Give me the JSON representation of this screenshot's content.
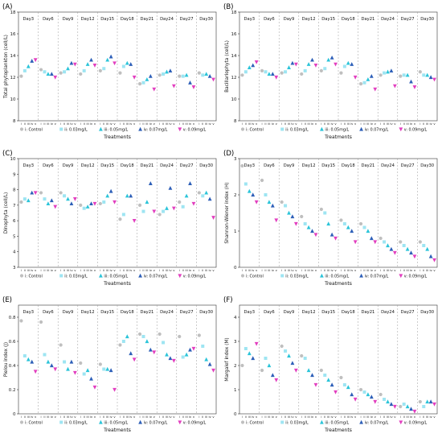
{
  "panels": [
    {
      "letter": "(A)"
    },
    {
      "letter": "(B)"
    },
    {
      "letter": "(C)"
    },
    {
      "letter": "(D)"
    },
    {
      "letter": "(E)"
    },
    {
      "letter": "(F)"
    }
  ],
  "legend": [
    {
      "name": "i: Control",
      "color": "#bfbfbf",
      "marker": "circle"
    },
    {
      "name": "ii: 0.03mg/L",
      "color": "#9ee5f2",
      "marker": "square"
    },
    {
      "name": "iii: 0.05mg/L",
      "color": "#2bc4d9",
      "marker": "triangle"
    },
    {
      "name": "iv: 0.07mg/L",
      "color": "#2d5fb8",
      "marker": "triangle"
    },
    {
      "name": "v: 0.09mg/L",
      "color": "#e23fbf",
      "marker": "triangle-down"
    }
  ],
  "chart_data": [
    {
      "type": "scatter",
      "title": "(A)",
      "xlabel": "Treatments",
      "ylabel": "Total phytoplankton (cell/L)",
      "ylim": [
        8,
        18
      ],
      "yticks": [
        8,
        10,
        12,
        14,
        16,
        18
      ],
      "days": [
        "Day3",
        "Day6",
        "Day9",
        "Day12",
        "Day15",
        "Day18",
        "Day21",
        "Day24",
        "Day27",
        "Day30"
      ],
      "treatment_ticks": [
        "i",
        "ii",
        "iii",
        "iv",
        "v"
      ],
      "grid": false,
      "legend_position": "bottom",
      "series": [
        {
          "name": "i: Control",
          "values": [
            12.1,
            12.7,
            12.4,
            12.3,
            12.6,
            12.4,
            11.4,
            12.2,
            12.1,
            12.4
          ]
        },
        {
          "name": "ii: 0.03mg/L",
          "values": [
            12.6,
            12.5,
            12.5,
            12.6,
            12.8,
            13.0,
            11.5,
            12.3,
            12.1,
            12.2
          ]
        },
        {
          "name": "iii: 0.05mg/L",
          "values": [
            13.0,
            12.3,
            12.8,
            13.2,
            13.6,
            13.3,
            11.8,
            12.5,
            12.2,
            12.3
          ]
        },
        {
          "name": "iv: 0.07mg/L",
          "values": [
            13.5,
            12.3,
            13.3,
            13.6,
            13.9,
            13.2,
            12.1,
            12.6,
            11.5,
            12.1
          ]
        },
        {
          "name": "v: 0.09mg/L",
          "values": [
            13.6,
            12.0,
            13.2,
            13.1,
            13.3,
            12.0,
            10.9,
            11.2,
            11.1,
            11.8
          ]
        }
      ]
    },
    {
      "type": "scatter",
      "title": "(B)",
      "xlabel": "Treatments",
      "ylabel": "Bacillariophyta (cell/L)",
      "ylim": [
        8,
        18
      ],
      "yticks": [
        8,
        10,
        12,
        14,
        16,
        18
      ],
      "days": [
        "Day3",
        "Day6",
        "Day9",
        "Day12",
        "Day15",
        "Day18",
        "Day21",
        "Day24",
        "Day27",
        "Day30"
      ],
      "treatment_ticks": [
        "i",
        "ii",
        "iii",
        "iv",
        "v"
      ],
      "grid": false,
      "legend_position": "bottom",
      "series": [
        {
          "name": "i: Control",
          "values": [
            12.2,
            12.6,
            12.4,
            12.3,
            12.6,
            12.4,
            11.4,
            12.2,
            12.1,
            12.5
          ]
        },
        {
          "name": "ii: 0.03mg/L",
          "values": [
            12.5,
            12.5,
            12.5,
            12.6,
            12.8,
            13.0,
            11.5,
            12.4,
            12.2,
            12.2
          ]
        },
        {
          "name": "iii: 0.05mg/L",
          "values": [
            12.9,
            12.3,
            12.9,
            13.2,
            13.6,
            13.3,
            11.8,
            12.5,
            12.2,
            12.2
          ]
        },
        {
          "name": "iv: 0.07mg/L",
          "values": [
            13.1,
            12.3,
            13.3,
            13.6,
            13.8,
            13.2,
            12.1,
            12.6,
            11.6,
            12.0
          ]
        },
        {
          "name": "v: 0.09mg/L",
          "values": [
            13.4,
            12.0,
            13.2,
            13.1,
            13.2,
            12.0,
            10.9,
            11.2,
            11.1,
            11.8
          ]
        }
      ]
    },
    {
      "type": "scatter",
      "title": "(C)",
      "xlabel": "Treatments",
      "ylabel": "Dinophyta (cell/L)",
      "ylim": [
        3,
        10
      ],
      "yticks": [
        3,
        4,
        5,
        6,
        7,
        8,
        9,
        10
      ],
      "days": [
        "Day3",
        "Day6",
        "Day9",
        "Day12",
        "Day15",
        "Day18",
        "Day21",
        "Day24",
        "Day27",
        "Day30"
      ],
      "treatment_ticks": [
        "i",
        "ii",
        "iii",
        "iv",
        "v"
      ],
      "grid": false,
      "legend_position": "bottom",
      "series": [
        {
          "name": "i: Control",
          "values": [
            7.2,
            7.8,
            7.8,
            7.0,
            7.1,
            6.1,
            7.0,
            6.4,
            7.2,
            7.8
          ]
        },
        {
          "name": "ii: 0.03mg/L",
          "values": [
            7.4,
            7.4,
            7.6,
            6.8,
            7.2,
            6.4,
            6.6,
            6.6,
            6.9,
            7.6
          ]
        },
        {
          "name": "iii: 0.05mg/L",
          "values": [
            7.3,
            7.1,
            7.4,
            6.9,
            7.6,
            7.6,
            7.2,
            6.8,
            7.6,
            7.8
          ]
        },
        {
          "name": "iv: 0.07mg/L",
          "values": [
            7.8,
            7.3,
            7.1,
            7.1,
            7.9,
            7.6,
            8.4,
            8.1,
            8.4,
            7.4
          ]
        },
        {
          "name": "v: 0.09mg/L",
          "values": [
            7.8,
            6.9,
            7.4,
            7.1,
            7.2,
            6.0,
            6.6,
            6.8,
            7.1,
            6.2
          ]
        }
      ]
    },
    {
      "type": "scatter",
      "title": "(D)",
      "xlabel": "Treatments",
      "ylabel": "Shannon-Wiener index (H)",
      "ylim": [
        0,
        3
      ],
      "yticks": [
        0,
        1,
        2,
        3
      ],
      "days": [
        "Day3",
        "Day6",
        "Day9",
        "Day12",
        "Day15",
        "Day18",
        "Day21",
        "Day24",
        "Day27",
        "Day30"
      ],
      "treatment_ticks": [
        "i",
        "ii",
        "iii",
        "iv",
        "v"
      ],
      "grid": false,
      "legend_position": "bottom",
      "series": [
        {
          "name": "i: Control",
          "values": [
            2.8,
            2.4,
            1.8,
            1.4,
            1.6,
            1.3,
            1.2,
            0.8,
            0.7,
            0.7
          ]
        },
        {
          "name": "ii: 0.03mg/L",
          "values": [
            2.3,
            2.0,
            1.7,
            1.2,
            1.5,
            1.2,
            1.1,
            0.7,
            0.6,
            0.6
          ]
        },
        {
          "name": "iii: 0.05mg/L",
          "values": [
            2.1,
            1.8,
            1.5,
            1.1,
            1.2,
            1.1,
            1.0,
            0.6,
            0.5,
            0.5
          ]
        },
        {
          "name": "iv: 0.07mg/L",
          "values": [
            2.0,
            1.7,
            1.4,
            1.0,
            0.9,
            1.0,
            0.8,
            0.5,
            0.4,
            0.3
          ]
        },
        {
          "name": "v: 0.09mg/L",
          "values": [
            1.8,
            1.3,
            1.2,
            0.9,
            0.8,
            0.7,
            0.7,
            0.4,
            0.3,
            0.2
          ]
        }
      ]
    },
    {
      "type": "scatter",
      "title": "(E)",
      "xlabel": "Treatments",
      "ylabel": "Pielou index (J)",
      "ylim": [
        0,
        0.9
      ],
      "yticks": [
        0.0,
        0.2,
        0.4,
        0.6,
        0.8
      ],
      "days": [
        "Day3",
        "Day6",
        "Day9",
        "Day12",
        "Day15",
        "Day18",
        "Day21",
        "Day24",
        "Day27",
        "Day30"
      ],
      "treatment_ticks": [
        "i",
        "ii",
        "iii",
        "iv",
        "v"
      ],
      "grid": false,
      "legend_position": "bottom",
      "series": [
        {
          "name": "i: Control",
          "values": [
            0.77,
            0.76,
            0.57,
            0.42,
            0.41,
            0.57,
            0.66,
            0.66,
            0.64,
            0.65
          ]
        },
        {
          "name": "ii: 0.03mg/L",
          "values": [
            0.48,
            0.49,
            0.43,
            0.33,
            0.37,
            0.6,
            0.64,
            0.59,
            0.47,
            0.56
          ]
        },
        {
          "name": "iii: 0.05mg/L",
          "values": [
            0.45,
            0.43,
            0.37,
            0.36,
            0.37,
            0.64,
            0.6,
            0.49,
            0.49,
            0.45
          ]
        },
        {
          "name": "iv: 0.07mg/L",
          "values": [
            0.43,
            0.4,
            0.43,
            0.29,
            0.36,
            0.5,
            0.53,
            0.46,
            0.53,
            0.41
          ]
        },
        {
          "name": "v: 0.09mg/L",
          "values": [
            0.35,
            0.37,
            0.34,
            0.22,
            0.2,
            0.45,
            0.51,
            0.44,
            0.54,
            0.36
          ]
        }
      ]
    },
    {
      "type": "scatter",
      "title": "(F)",
      "xlabel": "Treatments",
      "ylabel": "Margalef index (M)",
      "ylim": [
        0,
        4.5
      ],
      "yticks": [
        0,
        1,
        2,
        3,
        4
      ],
      "days": [
        "Day3",
        "Day6",
        "Day9",
        "Day12",
        "Day15",
        "Day18",
        "Day21",
        "Day24",
        "Day27",
        "Day30"
      ],
      "treatment_ticks": [
        "i",
        "ii",
        "iii",
        "iv",
        "v"
      ],
      "grid": false,
      "legend_position": "bottom",
      "series": [
        {
          "name": "i: Control",
          "values": [
            2.0,
            1.8,
            2.8,
            2.4,
            1.8,
            1.5,
            1.0,
            0.8,
            0.3,
            0.5
          ]
        },
        {
          "name": "ii: 0.03mg/L",
          "values": [
            2.7,
            2.3,
            2.6,
            2.3,
            1.6,
            1.2,
            0.9,
            0.6,
            0.4,
            0.3
          ]
        },
        {
          "name": "iii: 0.05mg/L",
          "values": [
            2.5,
            2.0,
            2.4,
            1.8,
            1.4,
            1.1,
            0.8,
            0.5,
            0.3,
            0.5
          ]
        },
        {
          "name": "iv: 0.07mg/L",
          "values": [
            2.3,
            1.6,
            2.1,
            1.6,
            1.2,
            0.8,
            0.7,
            0.4,
            0.2,
            0.5
          ]
        },
        {
          "name": "v: 0.09mg/L",
          "values": [
            2.9,
            1.4,
            1.8,
            1.2,
            0.9,
            0.6,
            0.5,
            0.3,
            0.1,
            0.4
          ]
        }
      ]
    }
  ]
}
